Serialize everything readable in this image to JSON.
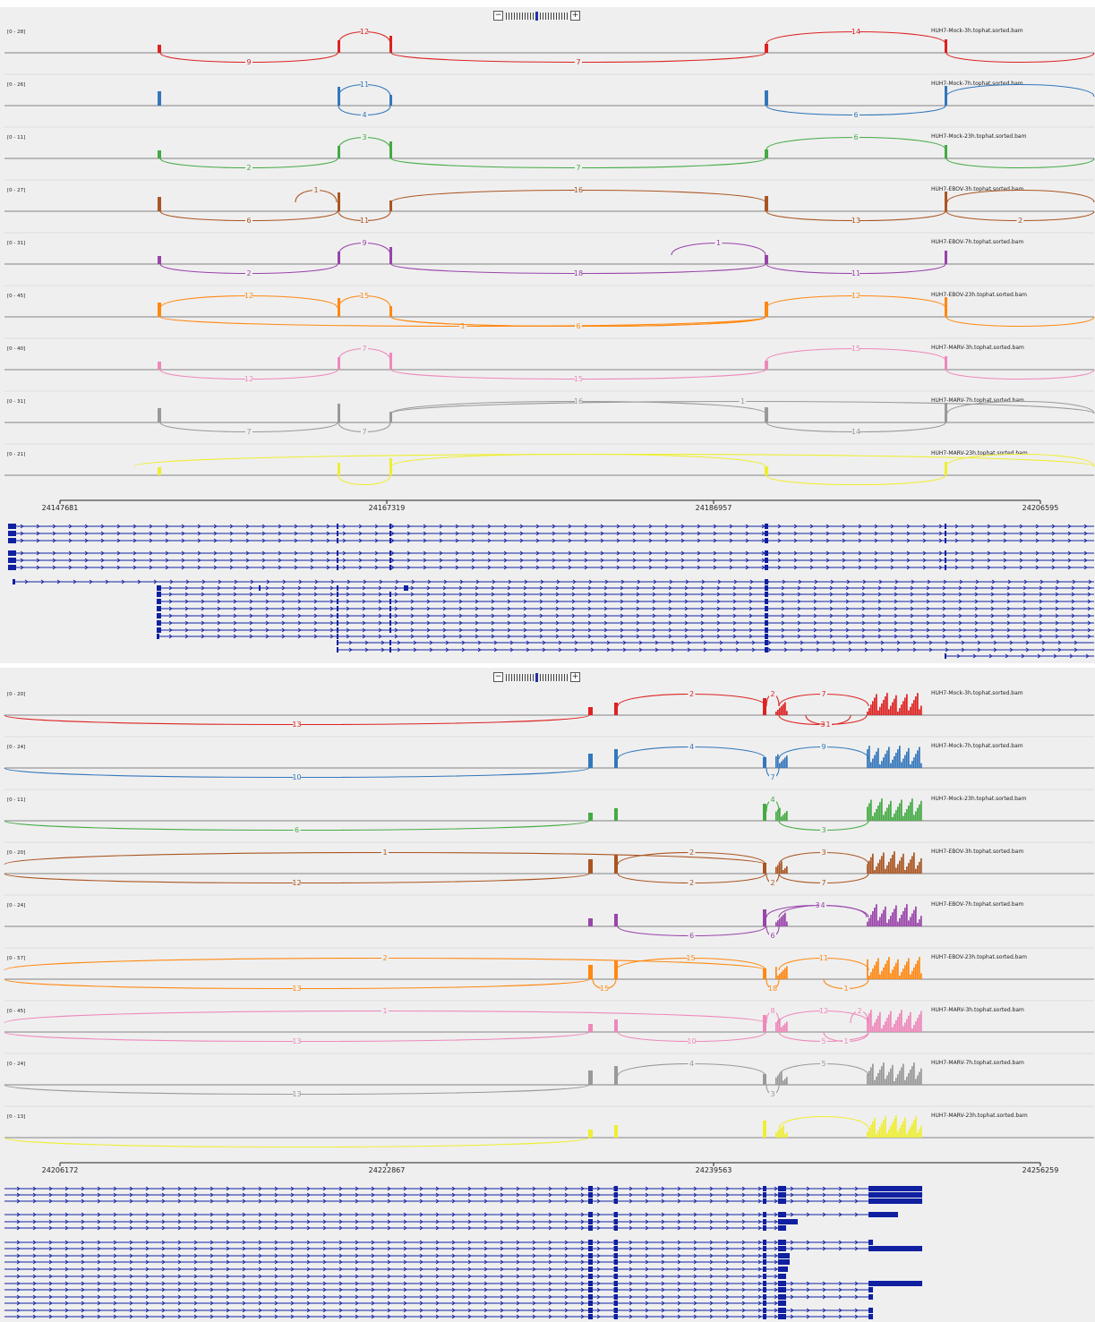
{
  "panels": [
    {
      "id": "top",
      "axis": {
        "start": 24147681,
        "ticks": [
          "24147681",
          "24167319",
          "24186957",
          "24206595"
        ]
      },
      "tracks": [
        {
          "name": "HUH7-Mock-3h.tophat.sorted.bam",
          "range": "[0 - 28]",
          "color": "#dd2222",
          "junctions": [
            [
              "2",
              "9",
              false
            ],
            [
              "3",
              "12",
              true
            ],
            [
              "4",
              "7",
              false
            ],
            [
              "5",
              "14",
              true
            ],
            [
              "6",
              "",
              false
            ]
          ]
        },
        {
          "name": "HUH7-Mock-7h.tophat.sorted.bam",
          "range": "[0 - 26]",
          "color": "#3377bb",
          "junctions": [
            [
              "3",
              "4",
              false
            ],
            [
              "3",
              "11",
              true
            ],
            [
              "5",
              "6",
              false
            ],
            [
              "6",
              "",
              true
            ]
          ]
        },
        {
          "name": "HUH7-Mock-23h.tophat.sorted.bam",
          "range": "[0 - 11]",
          "color": "#44aa44",
          "junctions": [
            [
              "2",
              "2",
              false
            ],
            [
              "3",
              "3",
              true
            ],
            [
              "4",
              "7",
              false
            ],
            [
              "5",
              "6",
              true
            ],
            [
              "6",
              "",
              false
            ]
          ]
        },
        {
          "name": "HUH7-EBOV-3h.tophat.sorted.bam",
          "range": "[0 - 27]",
          "color": "#aa5522",
          "junctions": [
            [
              "2",
              "6",
              false
            ],
            [
              "7",
              "1",
              true
            ],
            [
              "3",
              "11",
              false
            ],
            [
              "4",
              "16",
              true
            ],
            [
              "5",
              "13",
              false
            ],
            [
              "6",
              "2",
              false
            ],
            [
              "8",
              "",
              true
            ]
          ]
        },
        {
          "name": "HUH7-EBOV-7h.tophat.sorted.bam",
          "range": "[0 - 31]",
          "color": "#9944aa",
          "junctions": [
            [
              "2",
              "2",
              false
            ],
            [
              "3",
              "9",
              true
            ],
            [
              "4",
              "18",
              false
            ],
            [
              "9",
              "1",
              true
            ],
            [
              "5",
              "11",
              false
            ]
          ]
        },
        {
          "name": "HUH7-EBOV-23h.tophat.sorted.bam",
          "range": "[0 - 45]",
          "color": "#ff8811",
          "junctions": [
            [
              "2",
              "12",
              true
            ],
            [
              "10",
              "1",
              false
            ],
            [
              "3",
              "15",
              true
            ],
            [
              "4",
              "15",
              false
            ],
            [
              "11",
              "6",
              false
            ],
            [
              "5",
              "12",
              true
            ],
            [
              "6",
              "",
              false
            ]
          ]
        },
        {
          "name": "HUH7-MARV-3h.tophat.sorted.bam",
          "range": "[0 - 40]",
          "color": "#ee88bb",
          "junctions": [
            [
              "2",
              "12",
              false
            ],
            [
              "3",
              "7",
              true
            ],
            [
              "4",
              "15",
              false
            ],
            [
              "5",
              "15",
              true
            ],
            [
              "6",
              "",
              false
            ]
          ]
        },
        {
          "name": "HUH7-MARV-7h.tophat.sorted.bam",
          "range": "[0 - 31]",
          "color": "#999999",
          "junctions": [
            [
              "2",
              "7",
              false
            ],
            [
              "3",
              "7",
              false
            ],
            [
              "12",
              "1",
              true
            ],
            [
              "4",
              "16",
              true
            ],
            [
              "5",
              "14",
              false
            ],
            [
              "8",
              "",
              true
            ]
          ]
        },
        {
          "name": "HUH7-MARV-23h.tophat.sorted.bam",
          "range": "[0 - 21]",
          "color": "#eeee33",
          "junctions": [
            [
              "13",
              "",
              true
            ],
            [
              "3",
              "",
              false
            ],
            [
              "4",
              "",
              true
            ],
            [
              "5",
              "",
              false
            ],
            [
              "6",
              "",
              true
            ]
          ]
        }
      ]
    },
    {
      "id": "bottom",
      "axis": {
        "start": 24206172,
        "ticks": [
          "24206172",
          "24222867",
          "24239563",
          "24256259"
        ]
      },
      "tracks": [
        {
          "name": "HUH7-Mock-3h.tophat.sorted.bam",
          "range": "[0 - 20]",
          "color": "#dd2222",
          "junctions": [
            [
              "1",
              "13",
              false
            ],
            [
              "2",
              "2",
              true
            ],
            [
              "3",
              "2",
              true
            ],
            [
              "4",
              "7",
              true
            ],
            [
              "14",
              "3",
              false
            ],
            [
              "15",
              "1",
              false
            ]
          ]
        },
        {
          "name": "HUH7-Mock-7h.tophat.sorted.bam",
          "range": "[0 - 24]",
          "color": "#3377bb",
          "junctions": [
            [
              "1",
              "10",
              false
            ],
            [
              "2",
              "4",
              true
            ],
            [
              "3",
              "7",
              false
            ],
            [
              "4",
              "9",
              true
            ]
          ]
        },
        {
          "name": "HUH7-Mock-23h.tophat.sorted.bam",
          "range": "[0 - 11]",
          "color": "#44aa44",
          "junctions": [
            [
              "1",
              "6",
              false
            ],
            [
              "3",
              "4",
              true
            ],
            [
              "16",
              "3",
              false
            ]
          ]
        },
        {
          "name": "HUH7-EBOV-3h.tophat.sorted.bam",
          "range": "[0 - 20]",
          "color": "#aa5522",
          "junctions": [
            [
              "17",
              "1",
              true
            ],
            [
              "18",
              "12",
              false
            ],
            [
              "2",
              "2",
              true
            ],
            [
              "19",
              "2",
              false
            ],
            [
              "3",
              "2",
              false
            ],
            [
              "4",
              "3",
              true
            ],
            [
              "16",
              "7",
              false
            ]
          ]
        },
        {
          "name": "HUH7-EBOV-7h.tophat.sorted.bam",
          "range": "[0 - 24]",
          "color": "#9944aa",
          "junctions": [
            [
              "2",
              "6",
              false
            ],
            [
              "3",
              "6",
              false
            ],
            [
              "20",
              "3",
              true
            ],
            [
              "21",
              "4",
              true
            ]
          ]
        },
        {
          "name": "HUH7-EBOV-23h.tophat.sorted.bam",
          "range": "[0 - 57]",
          "color": "#ff8811",
          "junctions": [
            [
              "17",
              "2",
              true
            ],
            [
              "18",
              "13",
              false
            ],
            [
              "22",
              "15",
              false
            ],
            [
              "23",
              "15",
              true
            ],
            [
              "3",
              "18",
              false
            ],
            [
              "4",
              "11",
              true
            ],
            [
              "24",
              "1",
              false
            ]
          ]
        },
        {
          "name": "HUH7-MARV-3h.tophat.sorted.bam",
          "range": "[0 - 45]",
          "color": "#ee88bb",
          "junctions": [
            [
              "17",
              "1",
              true
            ],
            [
              "18",
              "13",
              false
            ],
            [
              "2",
              "10",
              false
            ],
            [
              "3",
              "8",
              true
            ],
            [
              "4",
              "12",
              true
            ],
            [
              "16",
              "5",
              false
            ],
            [
              "24",
              "1",
              false
            ],
            [
              "25",
              "2",
              true
            ]
          ]
        },
        {
          "name": "HUH7-MARV-7h.tophat.sorted.bam",
          "range": "[0 - 24]",
          "color": "#999999",
          "junctions": [
            [
              "1",
              "13",
              false
            ],
            [
              "2",
              "4",
              true
            ],
            [
              "3",
              "3",
              false
            ],
            [
              "4",
              "5",
              true
            ]
          ]
        },
        {
          "name": "HUH7-MARV-23h.tophat.sorted.bam",
          "range": "[0 - 13]",
          "color": "#eeee33",
          "junctions": [
            [
              "1",
              "",
              false
            ],
            [
              "4",
              "",
              true
            ]
          ]
        }
      ]
    }
  ]
}
